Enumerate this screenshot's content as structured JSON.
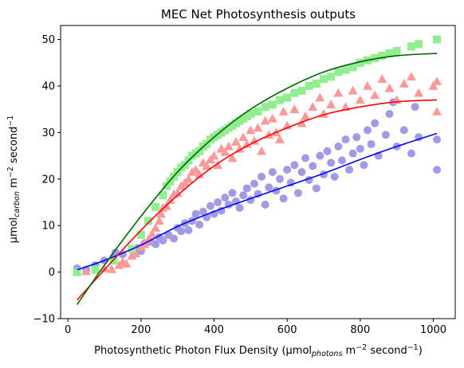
{
  "chart_data": {
    "type": "scatter",
    "title": "MEC Net Photosynthesis outputs",
    "xlabel": {
      "base": "Photosynthetic Photon Flux Density (μmol",
      "sub": "photons",
      "mid": " m",
      "sup1": "−2",
      "mid2": " second",
      "sup2": "−1",
      "tail": ")"
    },
    "ylabel": {
      "base": "μmol",
      "sub": "carbon",
      "mid": " m",
      "sup1": "−2",
      "mid2": " second",
      "sup2": "−1"
    },
    "xlim": [
      -20,
      1060
    ],
    "ylim": [
      -10,
      53
    ],
    "xticks": [
      0,
      200,
      400,
      600,
      800,
      1000
    ],
    "xtick_labels": [
      "0",
      "200",
      "400",
      "600",
      "800",
      "1000"
    ],
    "yticks": [
      -10,
      0,
      10,
      20,
      30,
      40,
      50
    ],
    "ytick_labels": [
      "−10",
      "0",
      "10",
      "20",
      "30",
      "40",
      "50"
    ],
    "grid": false,
    "series": [
      {
        "marker": "circle",
        "color": "#a39ae6",
        "points": [
          [
            25,
            0.8
          ],
          [
            25,
            0.3
          ],
          [
            50,
            0.5
          ],
          [
            75,
            1.5
          ],
          [
            100,
            2.5
          ],
          [
            125,
            3.2
          ],
          [
            130,
            4.2
          ],
          [
            150,
            3.8
          ],
          [
            175,
            4.8
          ],
          [
            190,
            5.2
          ],
          [
            200,
            4.5
          ],
          [
            210,
            6.2
          ],
          [
            225,
            6.5
          ],
          [
            240,
            6.0
          ],
          [
            250,
            7.5
          ],
          [
            260,
            6.8
          ],
          [
            275,
            8.0
          ],
          [
            290,
            7.2
          ],
          [
            300,
            9.5
          ],
          [
            310,
            8.8
          ],
          [
            320,
            10.5
          ],
          [
            330,
            9.0
          ],
          [
            340,
            11.0
          ],
          [
            350,
            12.5
          ],
          [
            360,
            10.2
          ],
          [
            370,
            13.0
          ],
          [
            380,
            11.8
          ],
          [
            390,
            14.2
          ],
          [
            400,
            12.5
          ],
          [
            410,
            15.0
          ],
          [
            420,
            13.2
          ],
          [
            430,
            16.0
          ],
          [
            440,
            14.5
          ],
          [
            450,
            17.0
          ],
          [
            460,
            15.2
          ],
          [
            470,
            13.8
          ],
          [
            480,
            16.5
          ],
          [
            490,
            18.0
          ],
          [
            500,
            15.5
          ],
          [
            510,
            19.0
          ],
          [
            520,
            16.8
          ],
          [
            530,
            20.5
          ],
          [
            540,
            14.5
          ],
          [
            550,
            18.2
          ],
          [
            560,
            21.5
          ],
          [
            570,
            17.5
          ],
          [
            580,
            20.0
          ],
          [
            590,
            15.8
          ],
          [
            600,
            22.0
          ],
          [
            610,
            19.2
          ],
          [
            620,
            23.0
          ],
          [
            630,
            17.0
          ],
          [
            640,
            21.5
          ],
          [
            650,
            24.5
          ],
          [
            660,
            19.8
          ],
          [
            670,
            22.8
          ],
          [
            680,
            18.0
          ],
          [
            690,
            25.0
          ],
          [
            700,
            21.0
          ],
          [
            710,
            26.0
          ],
          [
            720,
            23.5
          ],
          [
            730,
            20.5
          ],
          [
            740,
            27.0
          ],
          [
            750,
            24.0
          ],
          [
            760,
            28.5
          ],
          [
            770,
            22.0
          ],
          [
            780,
            25.5
          ],
          [
            790,
            29.0
          ],
          [
            800,
            26.5
          ],
          [
            810,
            23.0
          ],
          [
            820,
            30.5
          ],
          [
            830,
            27.5
          ],
          [
            840,
            32.0
          ],
          [
            850,
            25.0
          ],
          [
            870,
            29.5
          ],
          [
            880,
            34.0
          ],
          [
            890,
            36.5
          ],
          [
            900,
            27.0
          ],
          [
            920,
            30.5
          ],
          [
            940,
            25.5
          ],
          [
            950,
            35.5
          ],
          [
            960,
            29.0
          ],
          [
            1010,
            28.5
          ],
          [
            1010,
            22.0
          ]
        ]
      },
      {
        "marker": "triangle",
        "color": "#ff9999",
        "points": [
          [
            25,
            0.0
          ],
          [
            50,
            0.2
          ],
          [
            100,
            0.8
          ],
          [
            120,
            0.6
          ],
          [
            140,
            1.5
          ],
          [
            150,
            2.2
          ],
          [
            160,
            1.8
          ],
          [
            175,
            3.5
          ],
          [
            185,
            4.0
          ],
          [
            200,
            5.5
          ],
          [
            210,
            6.0
          ],
          [
            220,
            7.0
          ],
          [
            230,
            8.2
          ],
          [
            240,
            9.5
          ],
          [
            250,
            11.0
          ],
          [
            255,
            12.5
          ],
          [
            260,
            13.8
          ],
          [
            270,
            14.2
          ],
          [
            280,
            15.5
          ],
          [
            290,
            16.8
          ],
          [
            300,
            17.0
          ],
          [
            310,
            18.5
          ],
          [
            320,
            19.2
          ],
          [
            330,
            20.0
          ],
          [
            340,
            21.5
          ],
          [
            350,
            22.0
          ],
          [
            360,
            21.0
          ],
          [
            370,
            23.5
          ],
          [
            380,
            22.8
          ],
          [
            390,
            24.2
          ],
          [
            400,
            25.0
          ],
          [
            410,
            23.0
          ],
          [
            420,
            26.5
          ],
          [
            430,
            25.8
          ],
          [
            440,
            27.0
          ],
          [
            450,
            24.5
          ],
          [
            460,
            28.0
          ],
          [
            470,
            26.5
          ],
          [
            480,
            29.0
          ],
          [
            490,
            27.5
          ],
          [
            500,
            30.5
          ],
          [
            510,
            28.2
          ],
          [
            520,
            31.0
          ],
          [
            530,
            26.0
          ],
          [
            540,
            32.5
          ],
          [
            550,
            29.5
          ],
          [
            560,
            33.0
          ],
          [
            570,
            30.0
          ],
          [
            580,
            28.5
          ],
          [
            590,
            34.5
          ],
          [
            600,
            31.5
          ],
          [
            620,
            35.0
          ],
          [
            640,
            32.0
          ],
          [
            650,
            33.5
          ],
          [
            670,
            35.5
          ],
          [
            690,
            37.5
          ],
          [
            700,
            34.0
          ],
          [
            720,
            36.0
          ],
          [
            740,
            38.5
          ],
          [
            760,
            35.5
          ],
          [
            780,
            39.0
          ],
          [
            800,
            37.0
          ],
          [
            820,
            40.0
          ],
          [
            840,
            38.0
          ],
          [
            860,
            41.5
          ],
          [
            880,
            39.5
          ],
          [
            900,
            37.0
          ],
          [
            920,
            40.5
          ],
          [
            940,
            42.0
          ],
          [
            960,
            38.5
          ],
          [
            1000,
            40.0
          ],
          [
            1010,
            41.0
          ],
          [
            1010,
            34.5
          ]
        ]
      },
      {
        "marker": "square",
        "color": "#90ee90",
        "points": [
          [
            25,
            0.0
          ],
          [
            75,
            0.5
          ],
          [
            125,
            2.5
          ],
          [
            175,
            5.0
          ],
          [
            200,
            8.0
          ],
          [
            220,
            11.0
          ],
          [
            240,
            14.0
          ],
          [
            260,
            16.5
          ],
          [
            270,
            18.5
          ],
          [
            280,
            19.5
          ],
          [
            290,
            20.5
          ],
          [
            300,
            21.5
          ],
          [
            310,
            22.5
          ],
          [
            320,
            23.0
          ],
          [
            330,
            24.0
          ],
          [
            340,
            25.0
          ],
          [
            350,
            25.5
          ],
          [
            360,
            26.0
          ],
          [
            370,
            27.0
          ],
          [
            380,
            27.5
          ],
          [
            390,
            28.5
          ],
          [
            400,
            29.0
          ],
          [
            410,
            29.5
          ],
          [
            420,
            30.0
          ],
          [
            430,
            30.5
          ],
          [
            440,
            31.0
          ],
          [
            450,
            31.5
          ],
          [
            460,
            32.0
          ],
          [
            470,
            32.5
          ],
          [
            480,
            33.0
          ],
          [
            490,
            33.5
          ],
          [
            500,
            34.0
          ],
          [
            520,
            34.5
          ],
          [
            540,
            35.5
          ],
          [
            560,
            36.0
          ],
          [
            580,
            37.0
          ],
          [
            600,
            37.5
          ],
          [
            620,
            38.5
          ],
          [
            640,
            39.0
          ],
          [
            660,
            40.0
          ],
          [
            680,
            40.5
          ],
          [
            700,
            41.5
          ],
          [
            720,
            42.0
          ],
          [
            740,
            43.0
          ],
          [
            760,
            43.5
          ],
          [
            780,
            44.0
          ],
          [
            800,
            45.0
          ],
          [
            820,
            45.5
          ],
          [
            840,
            46.0
          ],
          [
            860,
            46.5
          ],
          [
            880,
            47.0
          ],
          [
            900,
            47.5
          ],
          [
            940,
            48.5
          ],
          [
            960,
            49.0
          ],
          [
            1010,
            50.0
          ]
        ]
      }
    ],
    "fit_lines": [
      {
        "color": "#0000ff",
        "points": [
          [
            25,
            0.5
          ],
          [
            100,
            2.5
          ],
          [
            200,
            5.8
          ],
          [
            300,
            9.8
          ],
          [
            400,
            13.0
          ],
          [
            500,
            15.8
          ],
          [
            600,
            18.5
          ],
          [
            700,
            21.2
          ],
          [
            800,
            24.2
          ],
          [
            900,
            27.0
          ],
          [
            1010,
            29.8
          ]
        ]
      },
      {
        "color": "#ff0000",
        "points": [
          [
            25,
            -6.0
          ],
          [
            100,
            0.5
          ],
          [
            200,
            9.0
          ],
          [
            300,
            16.5
          ],
          [
            400,
            22.8
          ],
          [
            500,
            27.5
          ],
          [
            600,
            31.0
          ],
          [
            700,
            33.8
          ],
          [
            800,
            35.5
          ],
          [
            900,
            36.6
          ],
          [
            1010,
            37.0
          ]
        ]
      },
      {
        "color": "#006400",
        "points": [
          [
            25,
            -7.0
          ],
          [
            100,
            1.5
          ],
          [
            200,
            12.0
          ],
          [
            300,
            21.5
          ],
          [
            400,
            29.0
          ],
          [
            500,
            35.0
          ],
          [
            600,
            39.5
          ],
          [
            700,
            43.0
          ],
          [
            800,
            45.2
          ],
          [
            900,
            46.5
          ],
          [
            1010,
            47.0
          ]
        ]
      }
    ]
  }
}
